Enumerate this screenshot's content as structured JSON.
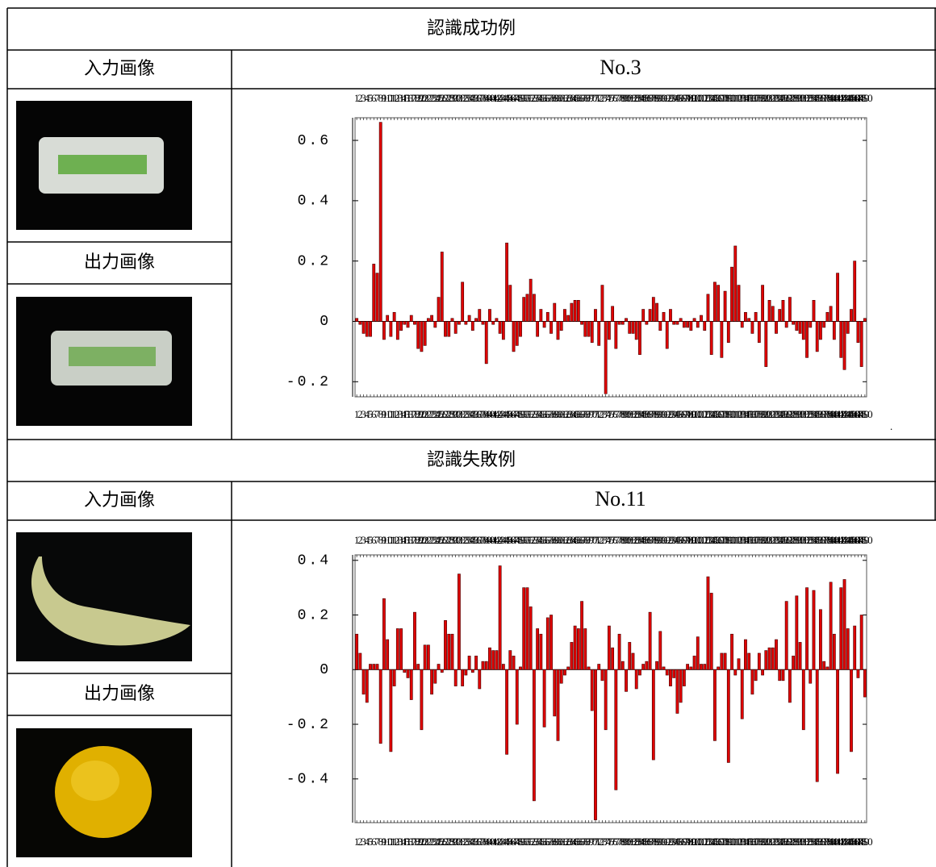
{
  "sections": [
    {
      "title": "認識成功例",
      "input_label": "入力画像",
      "output_label": "出力画像"
    },
    {
      "title": "認識失敗例",
      "input_label": "入力画像",
      "output_label": "出力画像"
    }
  ],
  "chart_data": [
    {
      "type": "bar",
      "title": "No.3",
      "annotation": ".",
      "color": "#e00000",
      "x": [
        1,
        2,
        3,
        4,
        5,
        6,
        7,
        8,
        9,
        10,
        11,
        12,
        13,
        14,
        15,
        16,
        17,
        18,
        19,
        20,
        21,
        22,
        23,
        24,
        25,
        26,
        27,
        28,
        29,
        30,
        31,
        32,
        33,
        34,
        35,
        36,
        37,
        38,
        39,
        40,
        41,
        42,
        43,
        44,
        45,
        46,
        47,
        48,
        49,
        50,
        51,
        52,
        53,
        54,
        55,
        56,
        57,
        58,
        59,
        60,
        61,
        62,
        63,
        64,
        65,
        66,
        67,
        68,
        69,
        70,
        71,
        72,
        73,
        74,
        75,
        76,
        77,
        78,
        79,
        80,
        81,
        82,
        83,
        84,
        85,
        86,
        87,
        88,
        89,
        90,
        91,
        92,
        93,
        94,
        95,
        96,
        97,
        98,
        99,
        100,
        101,
        102,
        103,
        104,
        105,
        106,
        107,
        108,
        109,
        110,
        111,
        112,
        113,
        114,
        115,
        116,
        117,
        118,
        119,
        120,
        121,
        122,
        123,
        124,
        125,
        126,
        127,
        128,
        129,
        130,
        131,
        132,
        133,
        134,
        135,
        136,
        137,
        138,
        139,
        140,
        141,
        142,
        143,
        144,
        145,
        146,
        147,
        148,
        149,
        150
      ],
      "values": [
        0.01,
        -0.01,
        -0.04,
        -0.05,
        -0.05,
        0.19,
        0.16,
        0.66,
        -0.06,
        0.02,
        -0.05,
        0.03,
        -0.06,
        -0.03,
        -0.01,
        -0.02,
        0.02,
        -0.01,
        -0.09,
        -0.1,
        -0.08,
        0.01,
        0.02,
        -0.02,
        0.08,
        0.23,
        -0.05,
        -0.05,
        0.01,
        -0.04,
        -0.01,
        0.13,
        -0.01,
        0.02,
        -0.03,
        0.01,
        0.04,
        -0.01,
        -0.14,
        0.04,
        -0.01,
        0.01,
        -0.04,
        -0.06,
        0.26,
        0.12,
        -0.1,
        -0.08,
        -0.05,
        0.08,
        0.09,
        0.14,
        0.09,
        -0.05,
        0.04,
        -0.02,
        0.03,
        -0.04,
        0.06,
        -0.06,
        -0.03,
        0.04,
        0.02,
        0.06,
        0.07,
        0.07,
        -0.01,
        -0.05,
        -0.05,
        -0.07,
        0.04,
        -0.08,
        0.12,
        -0.24,
        -0.06,
        0.05,
        -0.09,
        -0.01,
        -0.01,
        0.01,
        -0.04,
        -0.04,
        -0.06,
        -0.11,
        0.04,
        -0.01,
        0.04,
        0.08,
        0.06,
        -0.03,
        0.03,
        -0.09,
        0.04,
        -0.01,
        -0.01,
        0.01,
        -0.02,
        -0.02,
        -0.03,
        0.01,
        -0.02,
        0.02,
        -0.03,
        0.09,
        -0.11,
        0.13,
        0.12,
        -0.12,
        0.1,
        -0.07,
        0.18,
        0.25,
        0.12,
        -0.02,
        0.03,
        0.01,
        -0.04,
        0.03,
        -0.07,
        0.12,
        -0.15,
        0.07,
        0.05,
        -0.04,
        0.04,
        0.07,
        -0.02,
        0.08,
        -0.01,
        -0.03,
        -0.04,
        -0.06,
        -0.12,
        -0.02,
        0.07,
        -0.1,
        -0.06,
        -0.02,
        0.03,
        0.05,
        -0.06,
        0.16,
        -0.12,
        -0.16,
        -0.04,
        0.04,
        0.2,
        -0.07,
        -0.15,
        0.01
      ],
      "xlim": [
        0.5,
        150.5
      ],
      "ylim": [
        -0.25,
        0.675
      ],
      "yticks": [
        -0.2,
        0,
        0.2,
        0.4,
        0.6
      ]
    },
    {
      "type": "bar",
      "title": "No.11",
      "color": "#e00000",
      "x": [
        1,
        2,
        3,
        4,
        5,
        6,
        7,
        8,
        9,
        10,
        11,
        12,
        13,
        14,
        15,
        16,
        17,
        18,
        19,
        20,
        21,
        22,
        23,
        24,
        25,
        26,
        27,
        28,
        29,
        30,
        31,
        32,
        33,
        34,
        35,
        36,
        37,
        38,
        39,
        40,
        41,
        42,
        43,
        44,
        45,
        46,
        47,
        48,
        49,
        50,
        51,
        52,
        53,
        54,
        55,
        56,
        57,
        58,
        59,
        60,
        61,
        62,
        63,
        64,
        65,
        66,
        67,
        68,
        69,
        70,
        71,
        72,
        73,
        74,
        75,
        76,
        77,
        78,
        79,
        80,
        81,
        82,
        83,
        84,
        85,
        86,
        87,
        88,
        89,
        90,
        91,
        92,
        93,
        94,
        95,
        96,
        97,
        98,
        99,
        100,
        101,
        102,
        103,
        104,
        105,
        106,
        107,
        108,
        109,
        110,
        111,
        112,
        113,
        114,
        115,
        116,
        117,
        118,
        119,
        120,
        121,
        122,
        123,
        124,
        125,
        126,
        127,
        128,
        129,
        130,
        131,
        132,
        133,
        134,
        135,
        136,
        137,
        138,
        139,
        140,
        141,
        142,
        143,
        144,
        145,
        146,
        147,
        148,
        149,
        150
      ],
      "values": [
        0.13,
        0.06,
        -0.09,
        -0.12,
        0.02,
        0.02,
        0.02,
        -0.27,
        0.26,
        0.11,
        -0.3,
        -0.06,
        0.15,
        0.15,
        -0.01,
        -0.03,
        -0.11,
        0.21,
        0.02,
        -0.22,
        0.09,
        0.09,
        -0.09,
        -0.05,
        0.02,
        -0.01,
        0.18,
        0.13,
        0.13,
        -0.06,
        0.35,
        -0.06,
        -0.02,
        0.05,
        -0.01,
        0.05,
        -0.07,
        0.03,
        0.03,
        0.08,
        0.07,
        0.07,
        0.38,
        0.02,
        -0.31,
        0.07,
        0.05,
        -0.2,
        0.01,
        0.3,
        0.3,
        0.23,
        -0.48,
        0.15,
        0.13,
        -0.21,
        0.19,
        0.2,
        -0.17,
        -0.26,
        -0.05,
        -0.02,
        0.01,
        0.1,
        0.16,
        0.15,
        0.25,
        0.15,
        0.01,
        -0.15,
        -0.55,
        0.02,
        -0.04,
        -0.22,
        0.16,
        0.08,
        -0.44,
        0.13,
        0.03,
        -0.08,
        0.1,
        0.06,
        -0.07,
        -0.02,
        0.02,
        0.03,
        0.21,
        -0.33,
        0.03,
        0.14,
        0.01,
        -0.02,
        -0.06,
        -0.03,
        -0.16,
        -0.12,
        -0.06,
        0.02,
        0.01,
        0.05,
        0.12,
        0.02,
        0.02,
        0.34,
        0.28,
        -0.26,
        0.01,
        0.06,
        0.06,
        -0.34,
        0.13,
        -0.02,
        0.04,
        -0.18,
        0.11,
        0.06,
        -0.09,
        -0.04,
        0.06,
        -0.02,
        0.07,
        0.08,
        0.08,
        0.11,
        -0.04,
        -0.04,
        0.25,
        -0.12,
        0.05,
        0.27,
        0.1,
        -0.22,
        0.3,
        -0.05,
        0.29,
        -0.41,
        0.22,
        0.03,
        0.01,
        0.32,
        0.13,
        -0.38,
        0.3,
        0.33,
        0.15,
        -0.3,
        0.16,
        -0.03,
        0.2,
        -0.1
      ],
      "xlim": [
        0.5,
        150.5
      ],
      "ylim": [
        -0.56,
        0.42
      ],
      "yticks": [
        -0.4,
        -0.2,
        0,
        0.2,
        0.4
      ]
    }
  ]
}
